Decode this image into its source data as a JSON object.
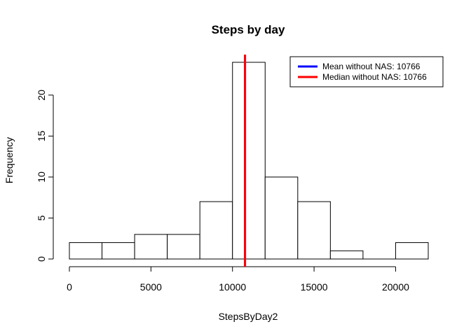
{
  "chart_data": {
    "type": "histogram",
    "title": "Steps by day",
    "xlabel": "StepsByDay2",
    "ylabel": "Frequency",
    "bins": [
      {
        "from": 0,
        "to": 2000,
        "count": 2
      },
      {
        "from": 2000,
        "to": 4000,
        "count": 2
      },
      {
        "from": 4000,
        "to": 6000,
        "count": 3
      },
      {
        "from": 6000,
        "to": 8000,
        "count": 3
      },
      {
        "from": 8000,
        "to": 10000,
        "count": 7
      },
      {
        "from": 10000,
        "to": 12000,
        "count": 24
      },
      {
        "from": 12000,
        "to": 14000,
        "count": 10
      },
      {
        "from": 14000,
        "to": 16000,
        "count": 7
      },
      {
        "from": 16000,
        "to": 18000,
        "count": 1
      },
      {
        "from": 18000,
        "to": 20000,
        "count": 0
      },
      {
        "from": 20000,
        "to": 22000,
        "count": 2
      }
    ],
    "xlim": [
      0,
      22000
    ],
    "ylim": [
      0,
      24
    ],
    "x_ticks": [
      0,
      5000,
      10000,
      15000,
      20000
    ],
    "y_ticks": [
      0,
      5,
      10,
      15,
      20
    ],
    "grid": false,
    "reference_lines": [
      {
        "name": "Mean without NAS:  10766",
        "value": 10766,
        "color": "#0000ff"
      },
      {
        "name": "Median without NAS:  10766",
        "value": 10766,
        "color": "#ff0000"
      }
    ],
    "legend": {
      "placement": "top-right",
      "entries": [
        {
          "label": "Mean without NAS:  10766",
          "color": "#0000ff"
        },
        {
          "label": "Median without NAS:  10766",
          "color": "#ff0000"
        }
      ]
    }
  }
}
